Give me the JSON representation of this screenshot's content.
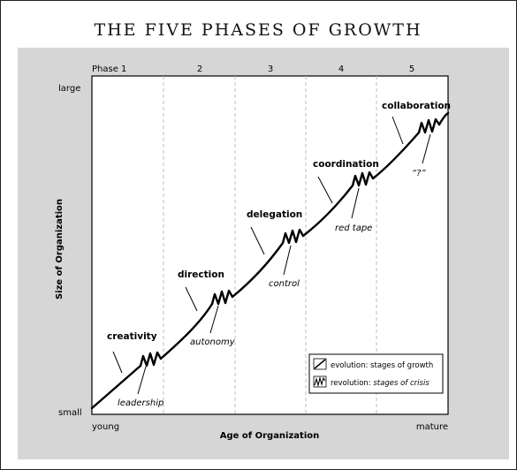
{
  "title": "THE FIVE PHASES OF GROWTH",
  "axes": {
    "y_label": "Size of Organization",
    "y_top": "large",
    "y_bottom": "small",
    "x_label": "Age of Organization",
    "x_left": "young",
    "x_right": "mature"
  },
  "phases": [
    "Phase 1",
    "2",
    "3",
    "4",
    "5"
  ],
  "evolution_labels": [
    "creativity",
    "direction",
    "delegation",
    "coordination",
    "collaboration"
  ],
  "crisis_labels": [
    "leadership",
    "autonomy",
    "control",
    "red tape",
    "“?”"
  ],
  "legend": {
    "evolution": "evolution:  stages of growth",
    "revolution_prefix": "revolution:",
    "revolution_suffix": "stages of crisis"
  },
  "colors": {
    "panel_gray": "#d6d6d6",
    "line": "#000000",
    "divider": "#bdbdbd"
  }
}
